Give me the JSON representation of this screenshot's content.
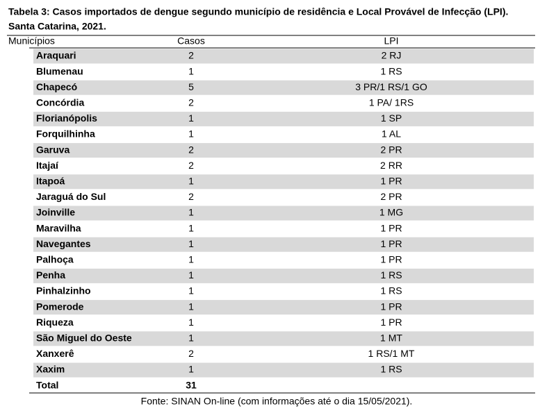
{
  "header": {
    "title_line1": "Tabela 3: Casos importados de dengue segundo município de residência e Local Provável de Infecção (LPI).",
    "title_line2": "Santa Catarina, 2021."
  },
  "table": {
    "columns": [
      "Municípios",
      "Casos",
      "LPI"
    ],
    "rows": [
      [
        "Araquari",
        2,
        "2 RJ"
      ],
      [
        "Blumenau",
        1,
        "1 RS"
      ],
      [
        "Chapecó",
        5,
        "3 PR/1 RS/1 GO"
      ],
      [
        "Concórdia",
        2,
        "1 PA/ 1RS"
      ],
      [
        "Florianópolis",
        1,
        "1 SP"
      ],
      [
        "Forquilhinha",
        1,
        "1 AL"
      ],
      [
        "Garuva",
        2,
        "2 PR"
      ],
      [
        "Itajaí",
        2,
        "2 RR"
      ],
      [
        "Itapoá",
        1,
        "1 PR"
      ],
      [
        "Jaraguá do Sul",
        2,
        "2 PR"
      ],
      [
        "Joinville",
        1,
        "1 MG"
      ],
      [
        "Maravilha",
        1,
        "1 PR"
      ],
      [
        "Navegantes",
        1,
        "1 PR"
      ],
      [
        "Palhoça",
        1,
        "1 PR"
      ],
      [
        "Penha",
        1,
        "1 RS"
      ],
      [
        "Pinhalzinho",
        1,
        "1 RS"
      ],
      [
        "Pomerode",
        1,
        "1 PR"
      ],
      [
        "Riqueza",
        1,
        "1 PR"
      ],
      [
        "São Miguel do Oeste",
        1,
        "1 MT"
      ],
      [
        "Xanxerê",
        2,
        "1 RS/1 MT"
      ],
      [
        "Xaxim",
        1,
        "1 RS"
      ]
    ],
    "total": [
      "Total",
      31
    ]
  },
  "footer": {
    "source": "Fonte: SINAN On-line (com informações até o dia 15/05/2021)."
  }
}
